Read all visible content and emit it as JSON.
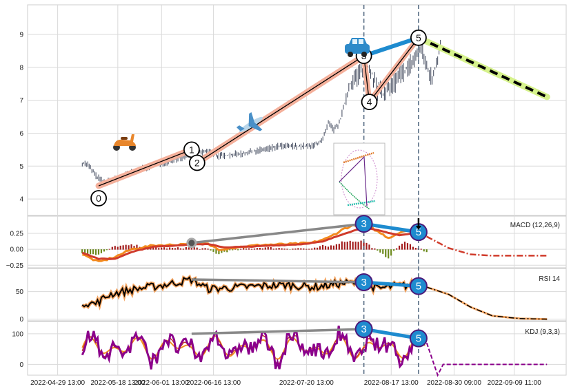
{
  "chart_data": {
    "type": "line",
    "x_tick_labels": [
      "2022-04-29 13:00",
      "2022-05-18 13:00",
      "2022-06-01 13:00",
      "2022-06-16 13:00",
      "2022-07-20 13:00",
      "2022-08-17 13:00",
      "2022-08-30 09:00",
      "2022-09-09 11:00"
    ],
    "panels": [
      {
        "id": "price",
        "type": "candlestick",
        "title": "",
        "ylim": [
          3.5,
          9.9
        ],
        "yticks": [
          4,
          5,
          6,
          7,
          8,
          9
        ],
        "price_path": [
          [
            0,
            5.1
          ],
          [
            2,
            5.05
          ],
          [
            5,
            4.7
          ],
          [
            8,
            4.5
          ],
          [
            12,
            4.6
          ],
          [
            18,
            4.8
          ],
          [
            25,
            5.0
          ],
          [
            32,
            5.15
          ],
          [
            38,
            5.3
          ],
          [
            42,
            5.4
          ],
          [
            46,
            5.45
          ],
          [
            50,
            5.3
          ],
          [
            55,
            5.35
          ],
          [
            60,
            5.4
          ],
          [
            66,
            5.5
          ],
          [
            72,
            5.6
          ],
          [
            78,
            5.6
          ],
          [
            84,
            5.6
          ],
          [
            88,
            5.8
          ],
          [
            90,
            6.3
          ],
          [
            92,
            6.1
          ],
          [
            94,
            6.3
          ],
          [
            98,
            7.5
          ],
          [
            100,
            7.7
          ],
          [
            102,
            7.9
          ],
          [
            104,
            8.1
          ],
          [
            106,
            7.8
          ],
          [
            108,
            7.3
          ],
          [
            110,
            7.2
          ],
          [
            112,
            7.4
          ],
          [
            115,
            7.6
          ],
          [
            118,
            7.9
          ],
          [
            121,
            8.2
          ],
          [
            124,
            8.6
          ],
          [
            126,
            8.0
          ],
          [
            128,
            7.6
          ],
          [
            130,
            8.3
          ],
          [
            131,
            8.8
          ]
        ],
        "waves": {
          "labels": [
            "0",
            "1",
            "2",
            "3",
            "4",
            "5"
          ],
          "points": [
            [
              6,
              4.4
            ],
            [
              40,
              5.5
            ],
            [
              42,
              5.1
            ],
            [
              103,
              8.35
            ],
            [
              105,
              6.95
            ],
            [
              123,
              8.9
            ]
          ]
        },
        "projection": {
          "from": [
            123,
            8.9
          ],
          "to": [
            170,
            7.1
          ]
        }
      },
      {
        "id": "macd",
        "title": "MACD (12,26,9)",
        "ylim": [
          -0.29,
          0.52
        ],
        "yticks": [
          0.25,
          0.0,
          -0.25
        ],
        "ytick_labels": [
          "0.25",
          "0.00",
          "−0.25"
        ],
        "wave_labels": [
          "3",
          "5"
        ],
        "divergence_points": [
          [
            40,
            0.1
          ],
          [
            103,
            0.4
          ],
          [
            123,
            0.27
          ]
        ]
      },
      {
        "id": "rsi",
        "title": "RSI 14",
        "ylim": [
          -3,
          92
        ],
        "yticks": [
          50,
          0
        ],
        "ytick_labels": [
          "50",
          "0"
        ],
        "wave_labels": [
          "3",
          "5"
        ],
        "divergence_points": [
          [
            40,
            72
          ],
          [
            103,
            67
          ],
          [
            123,
            60
          ]
        ]
      },
      {
        "id": "kdj",
        "title": "KDJ (9,3,3)",
        "ylim": [
          -35,
          140
        ],
        "yticks": [
          100,
          0
        ],
        "ytick_labels": [
          "100",
          "0"
        ],
        "wave_labels": [
          "3",
          "5"
        ],
        "divergence_points": [
          [
            40,
            100
          ],
          [
            103,
            115
          ],
          [
            123,
            85
          ]
        ]
      }
    ]
  },
  "colors": {
    "grid": "#d9d9d9",
    "candle": "#3c4458",
    "wave_line": "#f4b09b",
    "wave_inner": "#000000",
    "recent_wave": "#1e8bcf",
    "projection_outer": "#d6f28c",
    "vline": "#5a6f86",
    "macd_orange": "#f28a1e",
    "macd_red": "#d03b2b",
    "hist_up": "#a31d1d",
    "hist_down": "#6c8a1c",
    "rsi_line": "#000000",
    "rsi_halo": "#f4a460",
    "kdj_purple": "#8b008b",
    "kdj_orange": "#f09020",
    "divergence": "#888888"
  },
  "icons": [
    "scooter-icon",
    "airplane-icon",
    "car-icon"
  ]
}
